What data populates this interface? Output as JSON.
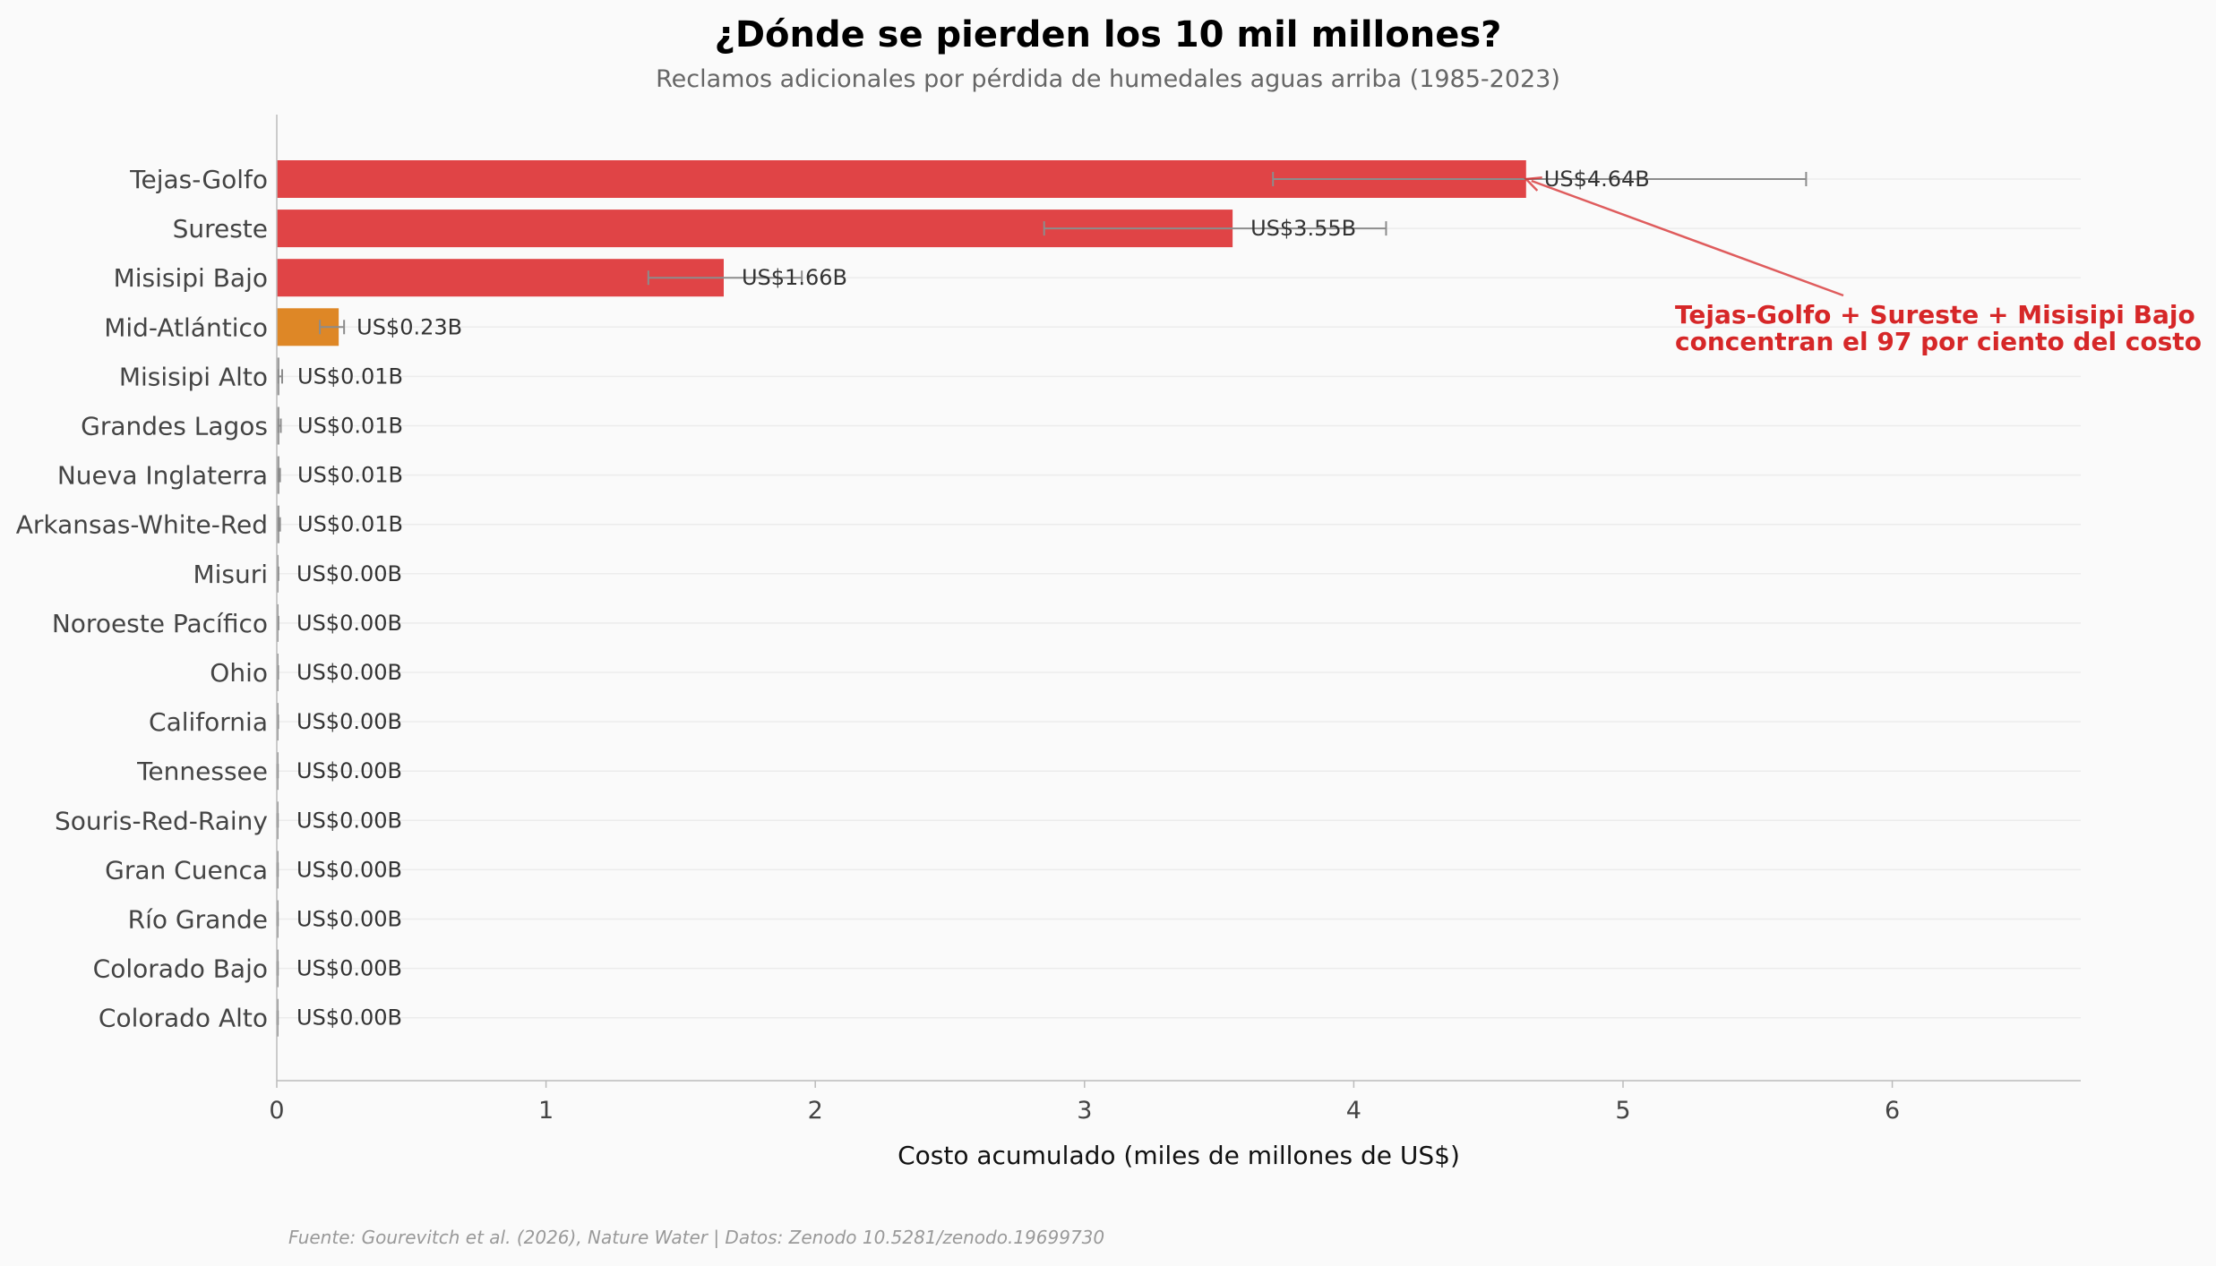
{
  "chart_data": {
    "type": "bar",
    "orientation": "horizontal",
    "title": "¿Dónde se pierden los 10 mil millones?",
    "subtitle": "Reclamos adicionales por pérdida de humedales aguas arriba (1985-2023)",
    "xlabel": "Costo acumulado (miles de millones de US$)",
    "ylabel": "",
    "xlim": [
      0,
      6.7
    ],
    "xticks": [
      "0",
      "1",
      "2",
      "3",
      "4",
      "5",
      "6"
    ],
    "grid": "horizontal",
    "categories": [
      "Tejas-Golfo",
      "Sureste",
      "Misisipi Bajo",
      "Mid-Atlántico",
      "Misisipi Alto",
      "Grandes Lagos",
      "Nueva Inglaterra",
      "Arkansas-White-Red",
      "Misuri",
      "Noroeste Pacífico",
      "Ohio",
      "California",
      "Tennessee",
      "Souris-Red-Rainy",
      "Gran Cuenca",
      "Río Grande",
      "Colorado Bajo",
      "Colorado Alto"
    ],
    "values": [
      4.64,
      3.55,
      1.66,
      0.23,
      0.01,
      0.01,
      0.01,
      0.01,
      0.004,
      0.004,
      0.003,
      0.003,
      0.002,
      0.002,
      0.002,
      0.002,
      0.002,
      0.002
    ],
    "value_labels": [
      "US$4.64B",
      "US$3.55B",
      "US$1.66B",
      "US$0.23B",
      "US$0.01B",
      "US$0.01B",
      "US$0.01B",
      "US$0.01B",
      "US$0.00B",
      "US$0.00B",
      "US$0.00B",
      "US$0.00B",
      "US$0.00B",
      "US$0.00B",
      "US$0.00B",
      "US$0.00B",
      "US$0.00B",
      "US$0.00B"
    ],
    "error_low": [
      3.7,
      2.85,
      1.38,
      0.16,
      0.005,
      0.005,
      0.005,
      0.005,
      0.002,
      0.002,
      0.002,
      0.002,
      0.001,
      0.001,
      0.001,
      0.001,
      0.001,
      0.001
    ],
    "error_high": [
      5.68,
      4.12,
      1.95,
      0.25,
      0.02,
      0.015,
      0.012,
      0.012,
      0.006,
      0.006,
      0.005,
      0.005,
      0.004,
      0.004,
      0.004,
      0.004,
      0.004,
      0.004
    ],
    "bar_colors": [
      "#e04446",
      "#e04446",
      "#e04446",
      "#de8726",
      "#9e9e9e",
      "#9e9e9e",
      "#9e9e9e",
      "#9e9e9e",
      "#9e9e9e",
      "#9e9e9e",
      "#9e9e9e",
      "#9e9e9e",
      "#9e9e9e",
      "#9e9e9e",
      "#9e9e9e",
      "#9e9e9e",
      "#9e9e9e",
      "#9e9e9e"
    ],
    "annotation": {
      "lines": [
        "Tejas-Golfo + Sureste + Misisipi Bajo",
        "concentran el 97 por ciento del costo"
      ],
      "color": "#d62728",
      "target_category": "Tejas-Golfo"
    },
    "source": "Fuente: Gourevitch et al. (2026), Nature Water | Datos: Zenodo 10.5281/zenodo.19699730"
  }
}
